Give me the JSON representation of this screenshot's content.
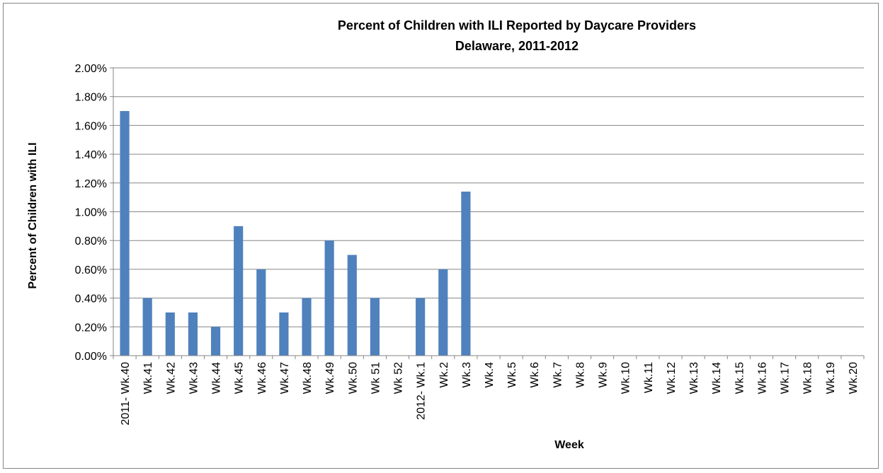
{
  "chart_data": {
    "type": "bar",
    "title": [
      "Percent of Children with ILI Reported by Daycare Providers",
      "Delaware, 2011-2012"
    ],
    "xlabel": "Week",
    "ylabel": "Percent of Children with ILI",
    "ylim": [
      0,
      2.0
    ],
    "ytick_step": 0.2,
    "ytick_format": "percent_2dp",
    "grid": "horizontal",
    "bar_color": "#4F81BD",
    "categories": [
      "2011- Wk.40",
      "Wk.41",
      "Wk.42",
      "Wk.43",
      "Wk.44",
      "Wk.45",
      "Wk.46",
      "Wk.47",
      "Wk.48",
      "Wk.49",
      "Wk.50",
      "Wk 51",
      "Wk 52",
      "2012- Wk.1",
      "Wk.2",
      "Wk.3",
      "Wk.4",
      "Wk.5",
      "Wk.6",
      "Wk.7",
      "Wk.8",
      "Wk.9",
      "Wk.10",
      "Wk.11",
      "Wk.12",
      "Wk.13",
      "Wk.14",
      "Wk.15",
      "Wk.16",
      "Wk.17",
      "Wk.18",
      "Wk.19",
      "Wk.20"
    ],
    "values": [
      1.7,
      0.4,
      0.3,
      0.3,
      0.2,
      0.9,
      0.6,
      0.3,
      0.4,
      0.8,
      0.7,
      0.4,
      null,
      0.4,
      0.6,
      1.14,
      null,
      null,
      null,
      null,
      null,
      null,
      null,
      null,
      null,
      null,
      null,
      null,
      null,
      null,
      null,
      null,
      null
    ]
  }
}
